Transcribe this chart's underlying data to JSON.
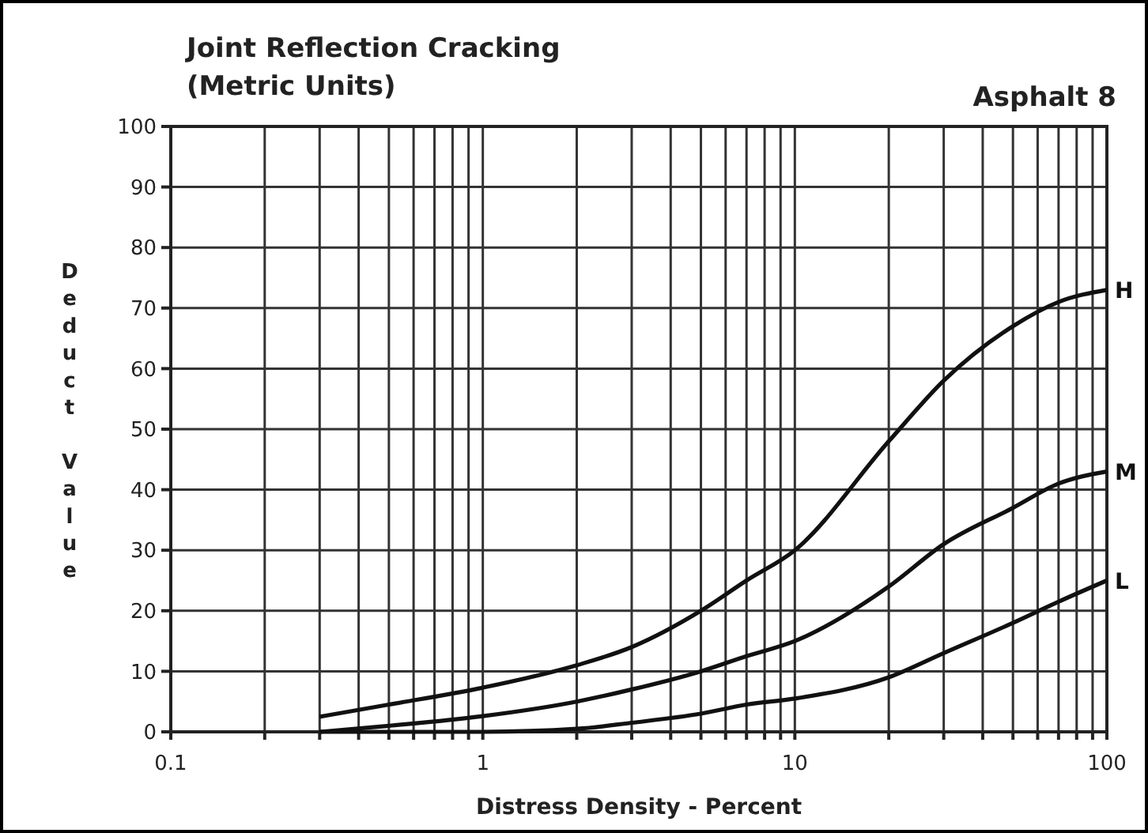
{
  "chart_data": {
    "type": "line",
    "title": "Joint Reflection Cracking",
    "subtitle": "(Metric Units)",
    "annotations": [
      "Asphalt 8"
    ],
    "xlabel": "Distress Density - Percent",
    "ylabel": "Deduct Value",
    "log": "x",
    "grid": true,
    "marker": "none",
    "line_style": "solid",
    "xlim": [
      0.1,
      100
    ],
    "ylim": [
      0,
      100
    ],
    "xticks": [
      0.1,
      {
        "value": 0.2,
        "label": null
      },
      {
        "value": 0.3,
        "label": null
      },
      {
        "value": 0.4,
        "label": null
      },
      {
        "value": 0.5,
        "label": null
      },
      {
        "value": 0.6,
        "label": null
      },
      {
        "value": 0.7,
        "label": null
      },
      {
        "value": 0.8,
        "label": null
      },
      {
        "value": 0.9,
        "label": null
      },
      1,
      {
        "value": 2,
        "label": null
      },
      {
        "value": 3,
        "label": null
      },
      {
        "value": 4,
        "label": null
      },
      {
        "value": 5,
        "label": null
      },
      {
        "value": 6,
        "label": null
      },
      {
        "value": 7,
        "label": null
      },
      {
        "value": 8,
        "label": null
      },
      {
        "value": 9,
        "label": null
      },
      10,
      {
        "value": 20,
        "label": null
      },
      {
        "value": 30,
        "label": null
      },
      {
        "value": 40,
        "label": null
      },
      {
        "value": 50,
        "label": null
      },
      {
        "value": 60,
        "label": null
      },
      {
        "value": 70,
        "label": null
      },
      {
        "value": 80,
        "label": null
      },
      {
        "value": 90,
        "label": null
      },
      100
    ],
    "yticks": [
      0,
      10,
      20,
      30,
      40,
      50,
      60,
      70,
      80,
      90,
      100
    ],
    "x": [
      0.3,
      0.5,
      1,
      2,
      3,
      5,
      7,
      10,
      20,
      30,
      50,
      70,
      100
    ],
    "series": [
      {
        "name": "H",
        "color": "#111111",
        "values": [
          2.5,
          4.5,
          7.3,
          11,
          14,
          20,
          25,
          30,
          48,
          58,
          67,
          71,
          73
        ]
      },
      {
        "name": "M",
        "color": "#111111",
        "values": [
          0,
          1,
          2.6,
          5,
          7,
          10,
          12.5,
          15,
          24,
          31,
          37,
          41,
          43
        ]
      },
      {
        "name": "L",
        "color": "#111111",
        "values": [
          0,
          0,
          0,
          0.5,
          1.5,
          3,
          4.5,
          5.5,
          9,
          13,
          18,
          21.5,
          25
        ]
      }
    ]
  }
}
